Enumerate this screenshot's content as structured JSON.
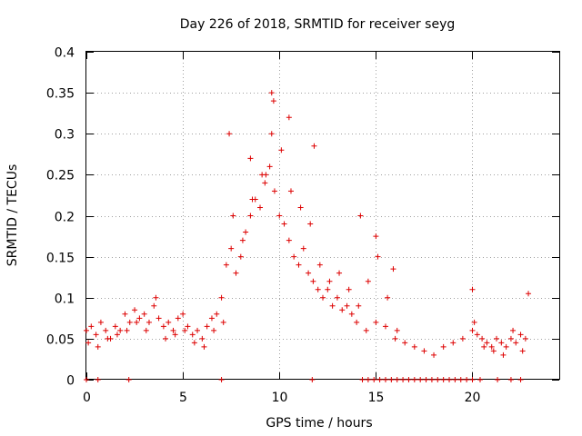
{
  "chart_data": {
    "type": "scatter",
    "title": "Day 226 of 2018, SRMTID for receiver seyg",
    "xlabel": "GPS time / hours",
    "ylabel": "SRMTID / TECUs",
    "xlim": [
      0,
      24.5
    ],
    "ylim": [
      0,
      0.4
    ],
    "xticks": [
      0,
      5,
      10,
      15,
      20
    ],
    "xtick_labels": [
      "0",
      "5",
      "10",
      "15",
      "20"
    ],
    "yticks": [
      0,
      0.05,
      0.1,
      0.15,
      0.2,
      0.25,
      0.3,
      0.35,
      0.4
    ],
    "ytick_labels": [
      "0",
      "0.05",
      "0.1",
      "0.15",
      "0.2",
      "0.25",
      "0.3",
      "0.35",
      "0.4"
    ],
    "grid": true,
    "marker": "+",
    "color": "#dd0000",
    "series": [
      {
        "name": "SRMTID",
        "x": [
          0.0,
          0.25,
          0.5,
          0.75,
          1.0,
          1.25,
          1.5,
          1.75,
          2.0,
          2.25,
          2.5,
          2.75,
          3.0,
          3.25,
          3.5,
          3.75,
          4.0,
          4.25,
          4.5,
          4.75,
          5.0,
          5.25,
          5.5,
          5.75,
          6.0,
          6.25,
          6.5,
          6.75,
          7.0,
          7.25,
          7.5,
          7.75,
          8.0,
          8.25,
          8.5,
          8.75,
          9.0,
          9.25,
          9.5,
          9.75,
          10.0,
          10.25,
          10.5,
          10.75,
          11.0,
          11.25,
          11.5,
          11.75,
          12.0,
          12.25,
          12.5,
          12.75,
          13.0,
          13.25,
          13.5,
          13.75,
          14.0,
          14.5,
          15.0,
          15.5,
          16.0,
          16.5,
          17.0,
          17.5,
          18.0,
          18.5,
          19.0,
          19.5,
          20.0,
          20.25,
          20.5,
          20.75,
          21.0,
          21.25,
          21.5,
          21.75,
          22.0,
          22.25,
          22.5,
          22.75,
          0.1,
          0.6,
          1.1,
          1.6,
          2.1,
          2.6,
          3.1,
          3.6,
          4.1,
          4.6,
          5.1,
          5.6,
          6.1,
          6.6,
          7.1,
          7.6,
          8.1,
          8.6,
          9.1,
          9.6,
          10.1,
          10.6,
          11.1,
          11.6,
          12.1,
          12.6,
          13.1,
          13.6,
          14.1,
          14.6,
          15.1,
          15.6,
          16.1,
          20.1,
          20.6,
          21.1,
          21.6,
          22.1,
          22.6,
          7.4,
          9.6,
          9.7,
          10.5,
          11.8,
          9.3,
          8.5,
          14.2,
          15.0,
          15.9,
          20.0,
          22.9,
          0.0,
          0.6,
          2.2,
          7.0,
          11.7,
          14.3,
          14.6,
          14.9,
          15.2,
          15.5,
          15.8,
          16.1,
          16.4,
          16.7,
          17.0,
          17.3,
          17.6,
          17.9,
          18.2,
          18.5,
          18.8,
          19.1,
          19.4,
          19.7,
          20.0,
          20.4,
          21.3,
          22.0,
          22.5
        ],
        "y": [
          0.06,
          0.065,
          0.055,
          0.07,
          0.06,
          0.05,
          0.065,
          0.06,
          0.08,
          0.07,
          0.085,
          0.075,
          0.08,
          0.07,
          0.09,
          0.075,
          0.065,
          0.07,
          0.06,
          0.075,
          0.08,
          0.065,
          0.055,
          0.06,
          0.05,
          0.065,
          0.075,
          0.08,
          0.1,
          0.14,
          0.16,
          0.13,
          0.15,
          0.18,
          0.2,
          0.22,
          0.21,
          0.24,
          0.26,
          0.23,
          0.2,
          0.19,
          0.17,
          0.15,
          0.14,
          0.16,
          0.13,
          0.12,
          0.11,
          0.1,
          0.11,
          0.09,
          0.1,
          0.085,
          0.09,
          0.08,
          0.07,
          0.06,
          0.07,
          0.065,
          0.05,
          0.045,
          0.04,
          0.035,
          0.03,
          0.04,
          0.045,
          0.05,
          0.06,
          0.055,
          0.05,
          0.045,
          0.04,
          0.05,
          0.045,
          0.04,
          0.05,
          0.045,
          0.055,
          0.05,
          0.045,
          0.04,
          0.05,
          0.055,
          0.06,
          0.07,
          0.06,
          0.1,
          0.05,
          0.055,
          0.06,
          0.045,
          0.04,
          0.06,
          0.07,
          0.2,
          0.17,
          0.22,
          0.25,
          0.3,
          0.28,
          0.23,
          0.21,
          0.19,
          0.14,
          0.12,
          0.13,
          0.11,
          0.09,
          0.12,
          0.15,
          0.1,
          0.06,
          0.07,
          0.04,
          0.035,
          0.03,
          0.06,
          0.035,
          0.3,
          0.35,
          0.34,
          0.32,
          0.285,
          0.25,
          0.27,
          0.2,
          0.175,
          0.135,
          0.11,
          0.105,
          0.0,
          0.0,
          0.0,
          0.0,
          0.0,
          0.0,
          0.0,
          0.0,
          0.0,
          0.0,
          0.0,
          0.0,
          0.0,
          0.0,
          0.0,
          0.0,
          0.0,
          0.0,
          0.0,
          0.0,
          0.0,
          0.0,
          0.0,
          0.0,
          0.0,
          0.0,
          0.0,
          0.0,
          0.0
        ]
      }
    ]
  }
}
